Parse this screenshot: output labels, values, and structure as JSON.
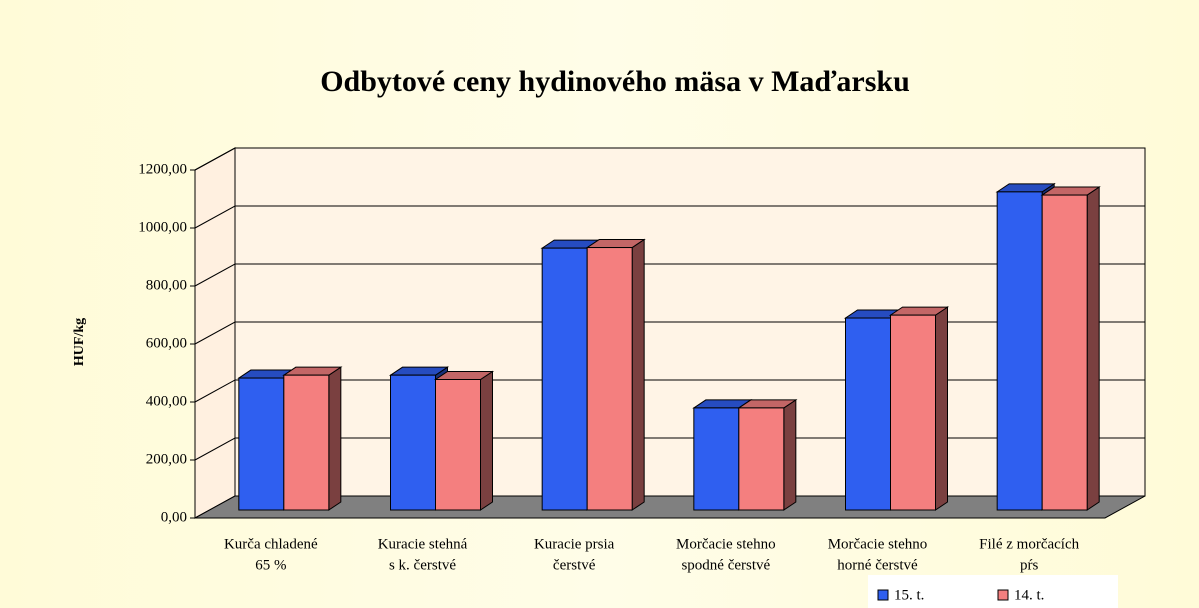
{
  "chart_data": {
    "type": "bar3d",
    "title": "Odbytové ceny hydinového mäsa v Maďarsku",
    "y_label": "HUF/kg",
    "categories": [
      [
        "Kurča chladené",
        "65 %"
      ],
      [
        "Kuracie stehná",
        "s k. čerstvé"
      ],
      [
        "Kuracie prsia",
        "čerstvé"
      ],
      [
        "Morčacie stehno",
        "spodné čerstvé"
      ],
      [
        "Morčacie stehno",
        "horné čerstvé"
      ],
      [
        "Filé z morčacích",
        "pŕs"
      ]
    ],
    "series": [
      {
        "name": "15. t.",
        "color": "#2f5ff0",
        "values": [
          455,
          465,
          903,
          352,
          662,
          1097
        ]
      },
      {
        "name": "14. t.",
        "color": "#f47f7f",
        "values": [
          465,
          450,
          905,
          352,
          672,
          1086
        ]
      }
    ],
    "ylim": [
      0,
      1200
    ],
    "yticks": [
      {
        "value": 0,
        "label": "0,00"
      },
      {
        "value": 200,
        "label": "200,00"
      },
      {
        "value": 400,
        "label": "400,00"
      },
      {
        "value": 600,
        "label": "600,00"
      },
      {
        "value": 800,
        "label": "800,00"
      },
      {
        "value": 1000,
        "label": "1000,00"
      },
      {
        "value": 1200,
        "label": "1200,00"
      }
    ],
    "grid": true,
    "legend": "bottom-right"
  }
}
